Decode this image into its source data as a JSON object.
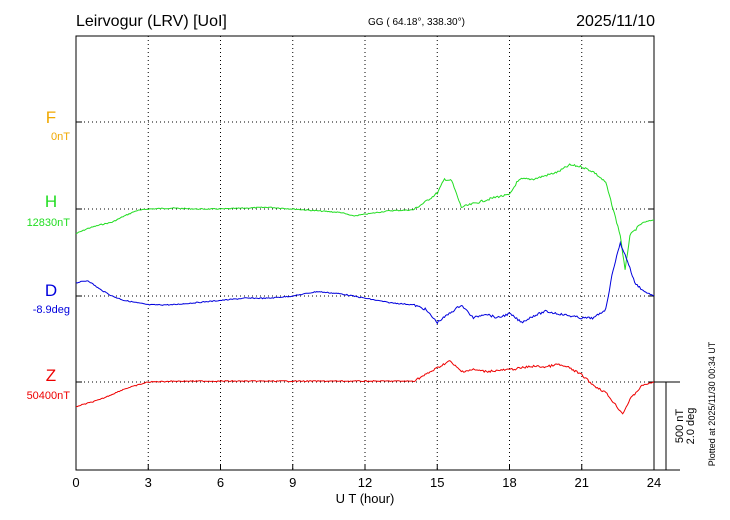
{
  "station_title": "Leirvogur (LRV)  [UoI]",
  "coordinates": "GG ( 64.18°, 338.30°)",
  "date": "2025/11/10",
  "xlabel": "U T (hour)",
  "plotted_note": "Plotted at 2025/11/30 00:34 UT",
  "scale_bar": {
    "nt": "500 nT",
    "deg": "2.0 deg"
  },
  "channels": [
    {
      "name": "F",
      "base": "0nT",
      "color": "#f0a800"
    },
    {
      "name": "H",
      "base": "12830nT",
      "color": "#22dd22"
    },
    {
      "name": "D",
      "base": "-8.9deg",
      "color": "#0000dd"
    },
    {
      "name": "Z",
      "base": "50400nT",
      "color": "#ee0000"
    }
  ],
  "chart_data": {
    "type": "line",
    "title": "Leirvogur (LRV)  [UoI]",
    "xlabel": "U T (hour)",
    "x_ticks": [
      0,
      3,
      6,
      9,
      12,
      15,
      18,
      21,
      24
    ],
    "xlim": [
      0,
      24
    ],
    "grid": true,
    "series": [
      {
        "name": "F",
        "baseline": "0nT",
        "points": []
      },
      {
        "name": "H",
        "baseline": "12830nT",
        "points": [
          [
            0,
            -140
          ],
          [
            0.5,
            -110
          ],
          [
            1,
            -90
          ],
          [
            1.5,
            -75
          ],
          [
            2,
            -40
          ],
          [
            2.5,
            -10
          ],
          [
            3,
            0
          ],
          [
            4,
            5
          ],
          [
            5,
            0
          ],
          [
            6,
            0
          ],
          [
            7,
            5
          ],
          [
            8,
            10
          ],
          [
            9,
            0
          ],
          [
            10,
            -10
          ],
          [
            11,
            -20
          ],
          [
            11.5,
            -40
          ],
          [
            12,
            -30
          ],
          [
            13,
            -10
          ],
          [
            14,
            -5
          ],
          [
            14.5,
            40
          ],
          [
            15,
            90
          ],
          [
            15.3,
            170
          ],
          [
            15.6,
            160
          ],
          [
            16,
            10
          ],
          [
            16.5,
            30
          ],
          [
            17,
            50
          ],
          [
            17.5,
            70
          ],
          [
            18,
            80
          ],
          [
            18.3,
            150
          ],
          [
            18.5,
            170
          ],
          [
            19,
            170
          ],
          [
            19.5,
            190
          ],
          [
            20,
            210
          ],
          [
            20.5,
            250
          ],
          [
            21,
            240
          ],
          [
            21.5,
            210
          ],
          [
            22,
            150
          ],
          [
            22.3,
            0
          ],
          [
            22.6,
            -150
          ],
          [
            22.8,
            -350
          ],
          [
            23,
            -150
          ],
          [
            23.5,
            -80
          ],
          [
            24,
            -60
          ]
        ]
      },
      {
        "name": "D",
        "baseline": "-8.9deg",
        "points": [
          [
            0,
            0.3
          ],
          [
            0.5,
            0.35
          ],
          [
            1,
            0.15
          ],
          [
            1.5,
            0.0
          ],
          [
            2,
            -0.1
          ],
          [
            2.5,
            -0.15
          ],
          [
            3,
            -0.2
          ],
          [
            4,
            -0.2
          ],
          [
            5,
            -0.15
          ],
          [
            6,
            -0.1
          ],
          [
            7,
            -0.05
          ],
          [
            8,
            -0.05
          ],
          [
            9,
            0.0
          ],
          [
            10,
            0.1
          ],
          [
            11,
            0.05
          ],
          [
            12,
            -0.05
          ],
          [
            13,
            -0.15
          ],
          [
            14,
            -0.2
          ],
          [
            14.5,
            -0.3
          ],
          [
            15,
            -0.6
          ],
          [
            15.5,
            -0.4
          ],
          [
            16,
            -0.2
          ],
          [
            16.5,
            -0.5
          ],
          [
            17,
            -0.4
          ],
          [
            17.5,
            -0.5
          ],
          [
            18,
            -0.4
          ],
          [
            18.5,
            -0.6
          ],
          [
            19,
            -0.45
          ],
          [
            19.5,
            -0.35
          ],
          [
            20,
            -0.4
          ],
          [
            20.5,
            -0.45
          ],
          [
            21,
            -0.5
          ],
          [
            21.5,
            -0.5
          ],
          [
            22,
            -0.3
          ],
          [
            22.3,
            0.6
          ],
          [
            22.6,
            1.2
          ],
          [
            22.9,
            0.8
          ],
          [
            23.2,
            0.3
          ],
          [
            23.6,
            0.1
          ],
          [
            24,
            0.0
          ]
        ]
      },
      {
        "name": "Z",
        "baseline": "50400nT",
        "points": [
          [
            0,
            -140
          ],
          [
            1,
            -100
          ],
          [
            2,
            -40
          ],
          [
            3,
            0
          ],
          [
            4,
            5
          ],
          [
            5,
            5
          ],
          [
            6,
            5
          ],
          [
            7,
            5
          ],
          [
            8,
            5
          ],
          [
            9,
            5
          ],
          [
            10,
            5
          ],
          [
            11,
            5
          ],
          [
            12,
            5
          ],
          [
            13,
            5
          ],
          [
            14,
            5
          ],
          [
            14.5,
            40
          ],
          [
            15,
            80
          ],
          [
            15.5,
            120
          ],
          [
            16,
            60
          ],
          [
            16.5,
            70
          ],
          [
            17,
            60
          ],
          [
            17.5,
            65
          ],
          [
            18,
            70
          ],
          [
            18.5,
            80
          ],
          [
            19,
            90
          ],
          [
            19.5,
            85
          ],
          [
            20,
            100
          ],
          [
            20.5,
            80
          ],
          [
            21,
            40
          ],
          [
            21.5,
            -20
          ],
          [
            22,
            -60
          ],
          [
            22.4,
            -130
          ],
          [
            22.7,
            -180
          ],
          [
            23,
            -100
          ],
          [
            23.5,
            -20
          ],
          [
            24,
            0
          ]
        ]
      }
    ]
  }
}
